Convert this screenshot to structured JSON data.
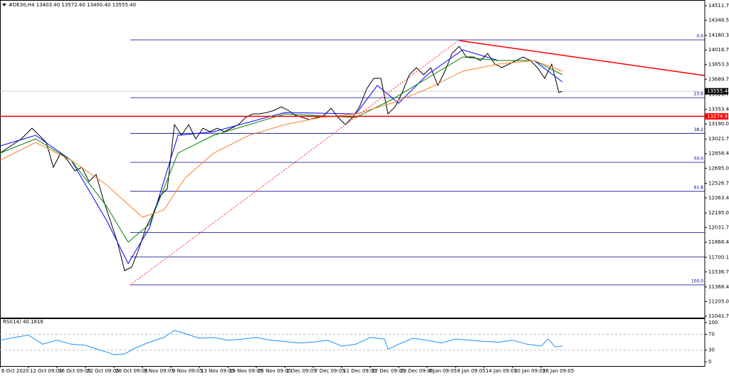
{
  "chart_data": [
    {
      "type": "line",
      "title": "#DE30,H4  13403.40 13572.40 13400.40 13555.40",
      "xlim": [
        0,
        198
      ],
      "xticks": [
        {
          "value": 0,
          "label": "6 Oct 2020"
        },
        {
          "value": 8,
          "label": "12 Oct 09:05"
        },
        {
          "value": 16,
          "label": "16 Oct 09:05"
        },
        {
          "value": 24,
          "label": "22 Oct 09:05"
        },
        {
          "value": 32,
          "label": "28 Oct 09:05"
        },
        {
          "value": 40,
          "label": "3 Nov 09:05"
        },
        {
          "value": 48,
          "label": "9 Nov 09:05"
        },
        {
          "value": 56,
          "label": "13 Nov 09:05"
        },
        {
          "value": 64,
          "label": "19 Nov 09:05"
        },
        {
          "value": 72,
          "label": "25 Nov 09:05"
        },
        {
          "value": 80,
          "label": "1 Dec 09:05"
        },
        {
          "value": 88,
          "label": "7 Dec 09:05"
        },
        {
          "value": 96,
          "label": "11 Dec 09:05"
        },
        {
          "value": 104,
          "label": "17 Dec 09:05"
        },
        {
          "value": 112,
          "label": "23 Dec 09:05"
        },
        {
          "value": 120,
          "label": "4 Jan 09:05"
        },
        {
          "value": 128,
          "label": "8 Jan 09:05"
        },
        {
          "value": 136,
          "label": "14 Jan 09:05"
        },
        {
          "value": 144,
          "label": "20 Jan 09:05"
        },
        {
          "value": 152,
          "label": "26 Jan 09:05"
        }
      ],
      "ylim": [
        11025.8,
        14575.4
      ],
      "yticks": [
        {
          "value": 14511.7,
          "label": "14511.70"
        },
        14348.55,
        14180.35,
        {
          "value": 14016.7,
          "label": "14016.70"
        },
        13853.35,
        {
          "value": 13689.7,
          "label": "13689.70"
        },
        {
          "value": 13521.7,
          "label": "13521.70"
        },
        {
          "value": 13353.4,
          "label": "13353.40"
        },
        13190.05,
        13021.75,
        {
          "value": 12858.4,
          "label": "12858.40"
        },
        12695.05,
        12526.75,
        {
          "value": 12363.4,
          "label": "12363.40"
        },
        12195.05,
        {
          "value": 12031.7,
          "label": "12031.70"
        },
        {
          "value": 11868.4,
          "label": "11868.40"
        },
        {
          "value": 11700.1,
          "label": "11700.10"
        },
        11536.75,
        {
          "value": 11368.4,
          "label": "11368.40"
        },
        11205.05,
        11041.75
      ],
      "series": [
        {
          "color": "#000000",
          "x": [
            0,
            3,
            6,
            9,
            11,
            13,
            15,
            17,
            19,
            21,
            23,
            25,
            27,
            29,
            31,
            33,
            35,
            37,
            39,
            41,
            43,
            45,
            47,
            49,
            51,
            53,
            55,
            57,
            59,
            61,
            63,
            65,
            67,
            69,
            71,
            73,
            75,
            77,
            79,
            81,
            83,
            85,
            87,
            89,
            91,
            93,
            95,
            97,
            99,
            101,
            103,
            105,
            107,
            109,
            111,
            113,
            115,
            117,
            119,
            121,
            123,
            125,
            127,
            129,
            131,
            133,
            135,
            137,
            139,
            141,
            143,
            145,
            147,
            149,
            151,
            153,
            155,
            157,
            158
          ],
          "values": [
            12864.3,
            12943.9,
            13023.5,
            13142.9,
            13063.3,
            12983.7,
            12705.1,
            12864.3,
            12784.7,
            12665.3,
            12705.1,
            12545.9,
            12625.5,
            12347.0,
            12108.2,
            11869.5,
            11551.1,
            11590.9,
            11789.9,
            12028.6,
            12187.8,
            12386.8,
            12466.4,
            13182.7,
            13063.3,
            13182.7,
            13023.5,
            13142.9,
            13103.1,
            13142.9,
            13103.1,
            13142.9,
            13182.7,
            13262.2,
            13302.0,
            13302.0,
            13317.9,
            13341.8,
            13381.6,
            13341.8,
            13286.1,
            13262.2,
            13238.4,
            13262.2,
            13286.1,
            13365.7,
            13262.2,
            13182.7,
            13262.2,
            13381.6,
            13580.6,
            13699.9,
            13699.9,
            13302.0,
            13381.6,
            13540.8,
            13739.7,
            13819.3,
            13739.7,
            13819.3,
            13620.4,
            13779.5,
            13978.5,
            14058.1,
            13938.7,
            13938.7,
            13898.9,
            13978.5,
            13859.1,
            13819.3,
            13859.1,
            13898.9,
            13938.7,
            13898.9,
            13819.3,
            13699.9,
            13859.1,
            13540.8,
            13555.4
          ]
        },
        {
          "color": "#0000ff",
          "x": [
            0,
            10,
            20,
            30,
            36,
            42,
            50,
            60,
            80,
            100,
            106,
            112,
            120,
            130,
            140,
            150,
            158
          ],
          "values": [
            12943.9,
            13063.3,
            12784.7,
            12108.2,
            11630.7,
            12028.6,
            13063.3,
            13103.1,
            13317.9,
            13302.0,
            13620.4,
            13421.4,
            13739.7,
            14018.3,
            13898.9,
            13898.9,
            13660.1
          ]
        },
        {
          "color": "#008000",
          "x": [
            0,
            10,
            20,
            30,
            36,
            42,
            50,
            60,
            80,
            100,
            110,
            120,
            130,
            140,
            150,
            158
          ],
          "values": [
            12864.3,
            13023.5,
            12784.7,
            12267.4,
            11869.5,
            12068.4,
            12864.3,
            13063.3,
            13302.0,
            13262.2,
            13461.2,
            13699.9,
            13938.7,
            13898.9,
            13898.9,
            13739.7
          ]
        },
        {
          "color": "#ff7f27",
          "x": [
            0,
            10,
            20,
            30,
            40,
            46,
            52,
            60,
            70,
            80,
            90,
            100,
            110,
            120,
            130,
            140,
            150,
            158
          ],
          "values": [
            12784.7,
            12983.7,
            12784.7,
            12506.2,
            12148.0,
            12227.6,
            12585.7,
            12864.3,
            13063.3,
            13182.7,
            13262.2,
            13302.0,
            13421.4,
            13580.6,
            13779.5,
            13859.1,
            13898.9,
            13779.5
          ]
        }
      ],
      "fib": {
        "x_start": 36.6,
        "x_end": 198,
        "prices": [
          14129.7,
          13484.0,
          13084.6,
          12761.0,
          12437.6,
          11977.0,
          11703.0,
          11391.9
        ],
        "labels": [
          "0.0",
          "23.6",
          "38.2",
          "50.0",
          "61.8",
          null,
          null,
          "100.0"
        ],
        "color": "#00008b"
      },
      "trendlines": [
        {
          "x": [
            129,
            198
          ],
          "values": [
            14121.8,
            13731.0
          ],
          "color": "#ff0000",
          "dashed": false
        },
        {
          "x": [
            36.6,
            129
          ],
          "values": [
            11391.9,
            14129.7
          ],
          "color": "#ff0000",
          "dashed": true
        }
      ],
      "price_line": {
        "value": 13274.97,
        "color": "#ff0000"
      },
      "current_price": {
        "value": 13555.4,
        "label": "13555.40",
        "color": "#c0c0c0"
      }
    },
    {
      "type": "line",
      "title": "RSI(14) 40.1816",
      "xlim": [
        0,
        198
      ],
      "ylim": [
        0,
        100
      ],
      "yticks": [
        100,
        70,
        30,
        0
      ],
      "levels": [
        70,
        30
      ],
      "series": [
        {
          "color": "#1e90ff",
          "x": [
            0,
            4,
            8,
            12,
            16,
            20,
            24,
            28,
            30,
            32,
            35,
            38,
            42,
            46,
            49,
            52,
            56,
            60,
            64,
            68,
            72,
            76,
            80,
            84,
            88,
            92,
            96,
            100,
            104,
            108,
            109,
            112,
            116,
            120,
            124,
            128,
            132,
            136,
            140,
            144,
            148,
            152,
            154,
            156,
            158
          ],
          "values": [
            55,
            62,
            68,
            45,
            55,
            45,
            42,
            30,
            25,
            18,
            20,
            35,
            50,
            62,
            80,
            72,
            60,
            62,
            55,
            58,
            62,
            55,
            52,
            48,
            50,
            55,
            40,
            45,
            62,
            58,
            32,
            45,
            60,
            55,
            48,
            58,
            55,
            52,
            50,
            55,
            45,
            40,
            58,
            38,
            40.1816
          ]
        }
      ]
    }
  ]
}
